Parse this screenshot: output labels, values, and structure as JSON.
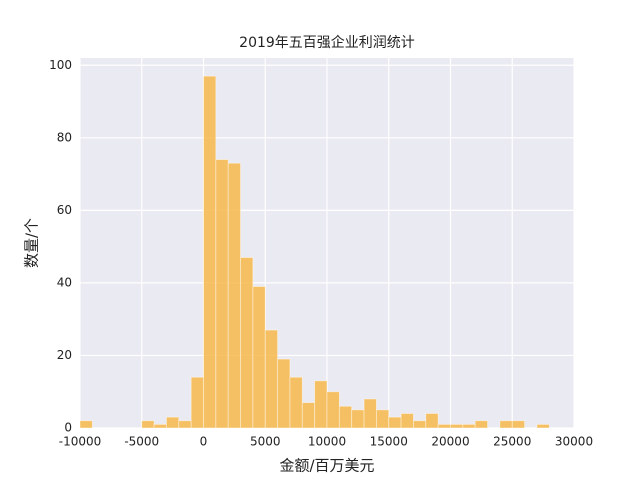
{
  "chart_data": {
    "type": "histogram",
    "title": "2019年五百强企业利润统计",
    "x_label": "金额/百万美元",
    "y_label": "数量/个",
    "bins": [
      -10000,
      -9000,
      -8000,
      -7000,
      -6000,
      -5000,
      -4000,
      -3000,
      -2000,
      -1000,
      0,
      1000,
      2000,
      3000,
      4000,
      5000,
      6000,
      7000,
      8000,
      9000,
      10000,
      11000,
      12000,
      13000,
      14000,
      15000,
      16000,
      17000,
      18000,
      19000,
      20000,
      21000,
      22000,
      23000,
      24000,
      25000,
      26000,
      27000,
      28000,
      29000
    ],
    "values": [
      2,
      0,
      0,
      0,
      0,
      2,
      1,
      3,
      2,
      14,
      97,
      74,
      73,
      47,
      39,
      27,
      19,
      14,
      7,
      13,
      10,
      6,
      5,
      8,
      5,
      3,
      4,
      2,
      4,
      1,
      1,
      1,
      2,
      0,
      2,
      2,
      0,
      1,
      0
    ],
    "color": "#f7b84b",
    "xlim": [
      -10000,
      30000
    ],
    "ylim": [
      0,
      102
    ],
    "xticks": [
      -10000,
      -5000,
      0,
      5000,
      10000,
      15000,
      20000,
      25000,
      30000
    ],
    "yticks": [
      0,
      20,
      40,
      60,
      80,
      100
    ],
    "grid": true
  }
}
